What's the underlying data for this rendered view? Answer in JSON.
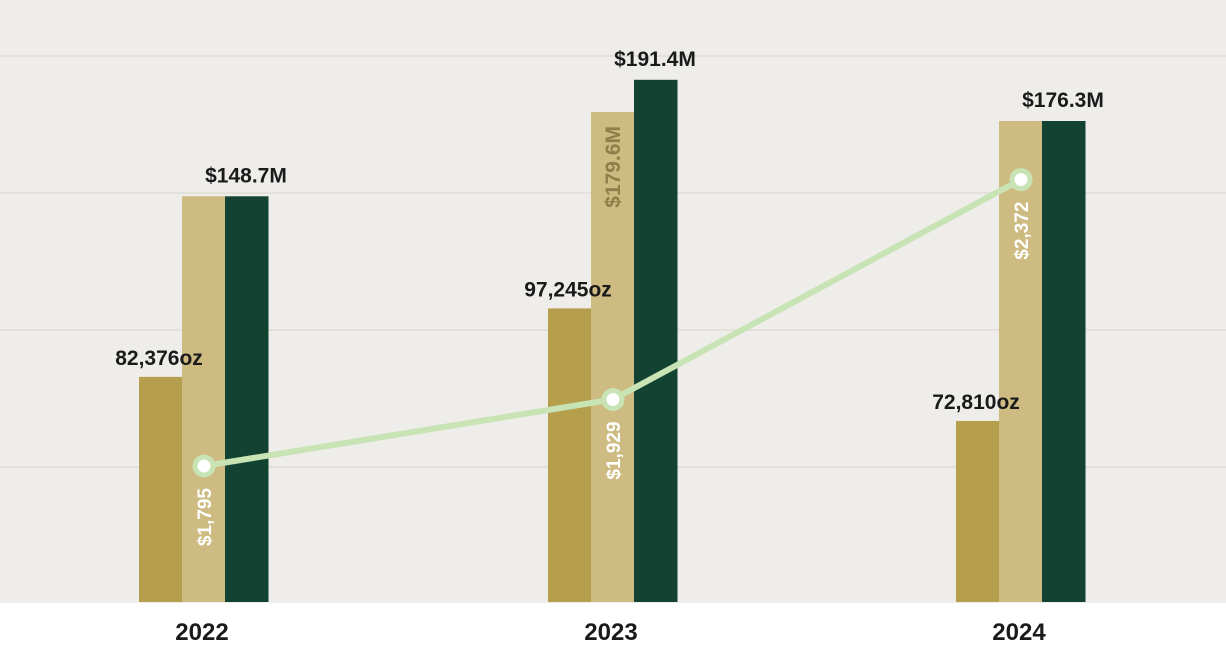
{
  "chart_data": {
    "type": "bar",
    "categories": [
      "2022",
      "2023",
      "2024"
    ],
    "series": [
      {
        "values": [
          82376,
          97245,
          72810
        ],
        "labels": [
          "82,376oz",
          "97,245oz",
          "72,810oz"
        ],
        "color": "#b59e4c"
      },
      {
        "values": [
          148.7,
          179.6,
          176.3
        ],
        "labels": [
          "",
          "$179.6M",
          ""
        ],
        "color": "#cdbb82"
      },
      {
        "values": [
          148.7,
          191.4,
          176.3
        ],
        "labels": [
          "$148.7M",
          "$191.4M",
          "$176.3M"
        ],
        "color": "#124232"
      },
      {
        "type": "line",
        "values": [
          1795,
          1929,
          2372
        ],
        "labels": [
          "$1,795",
          "$1,929",
          "$2,372"
        ],
        "color": "#c8e3b4"
      }
    ],
    "gridlines": true,
    "legend": "none"
  },
  "colors": {
    "plot_background": "#efedea",
    "gridline": "#e4e1dc",
    "label_dark": "#1a1a1a",
    "label_muted": "#8e7e4a",
    "label_light": "#ffffff"
  }
}
